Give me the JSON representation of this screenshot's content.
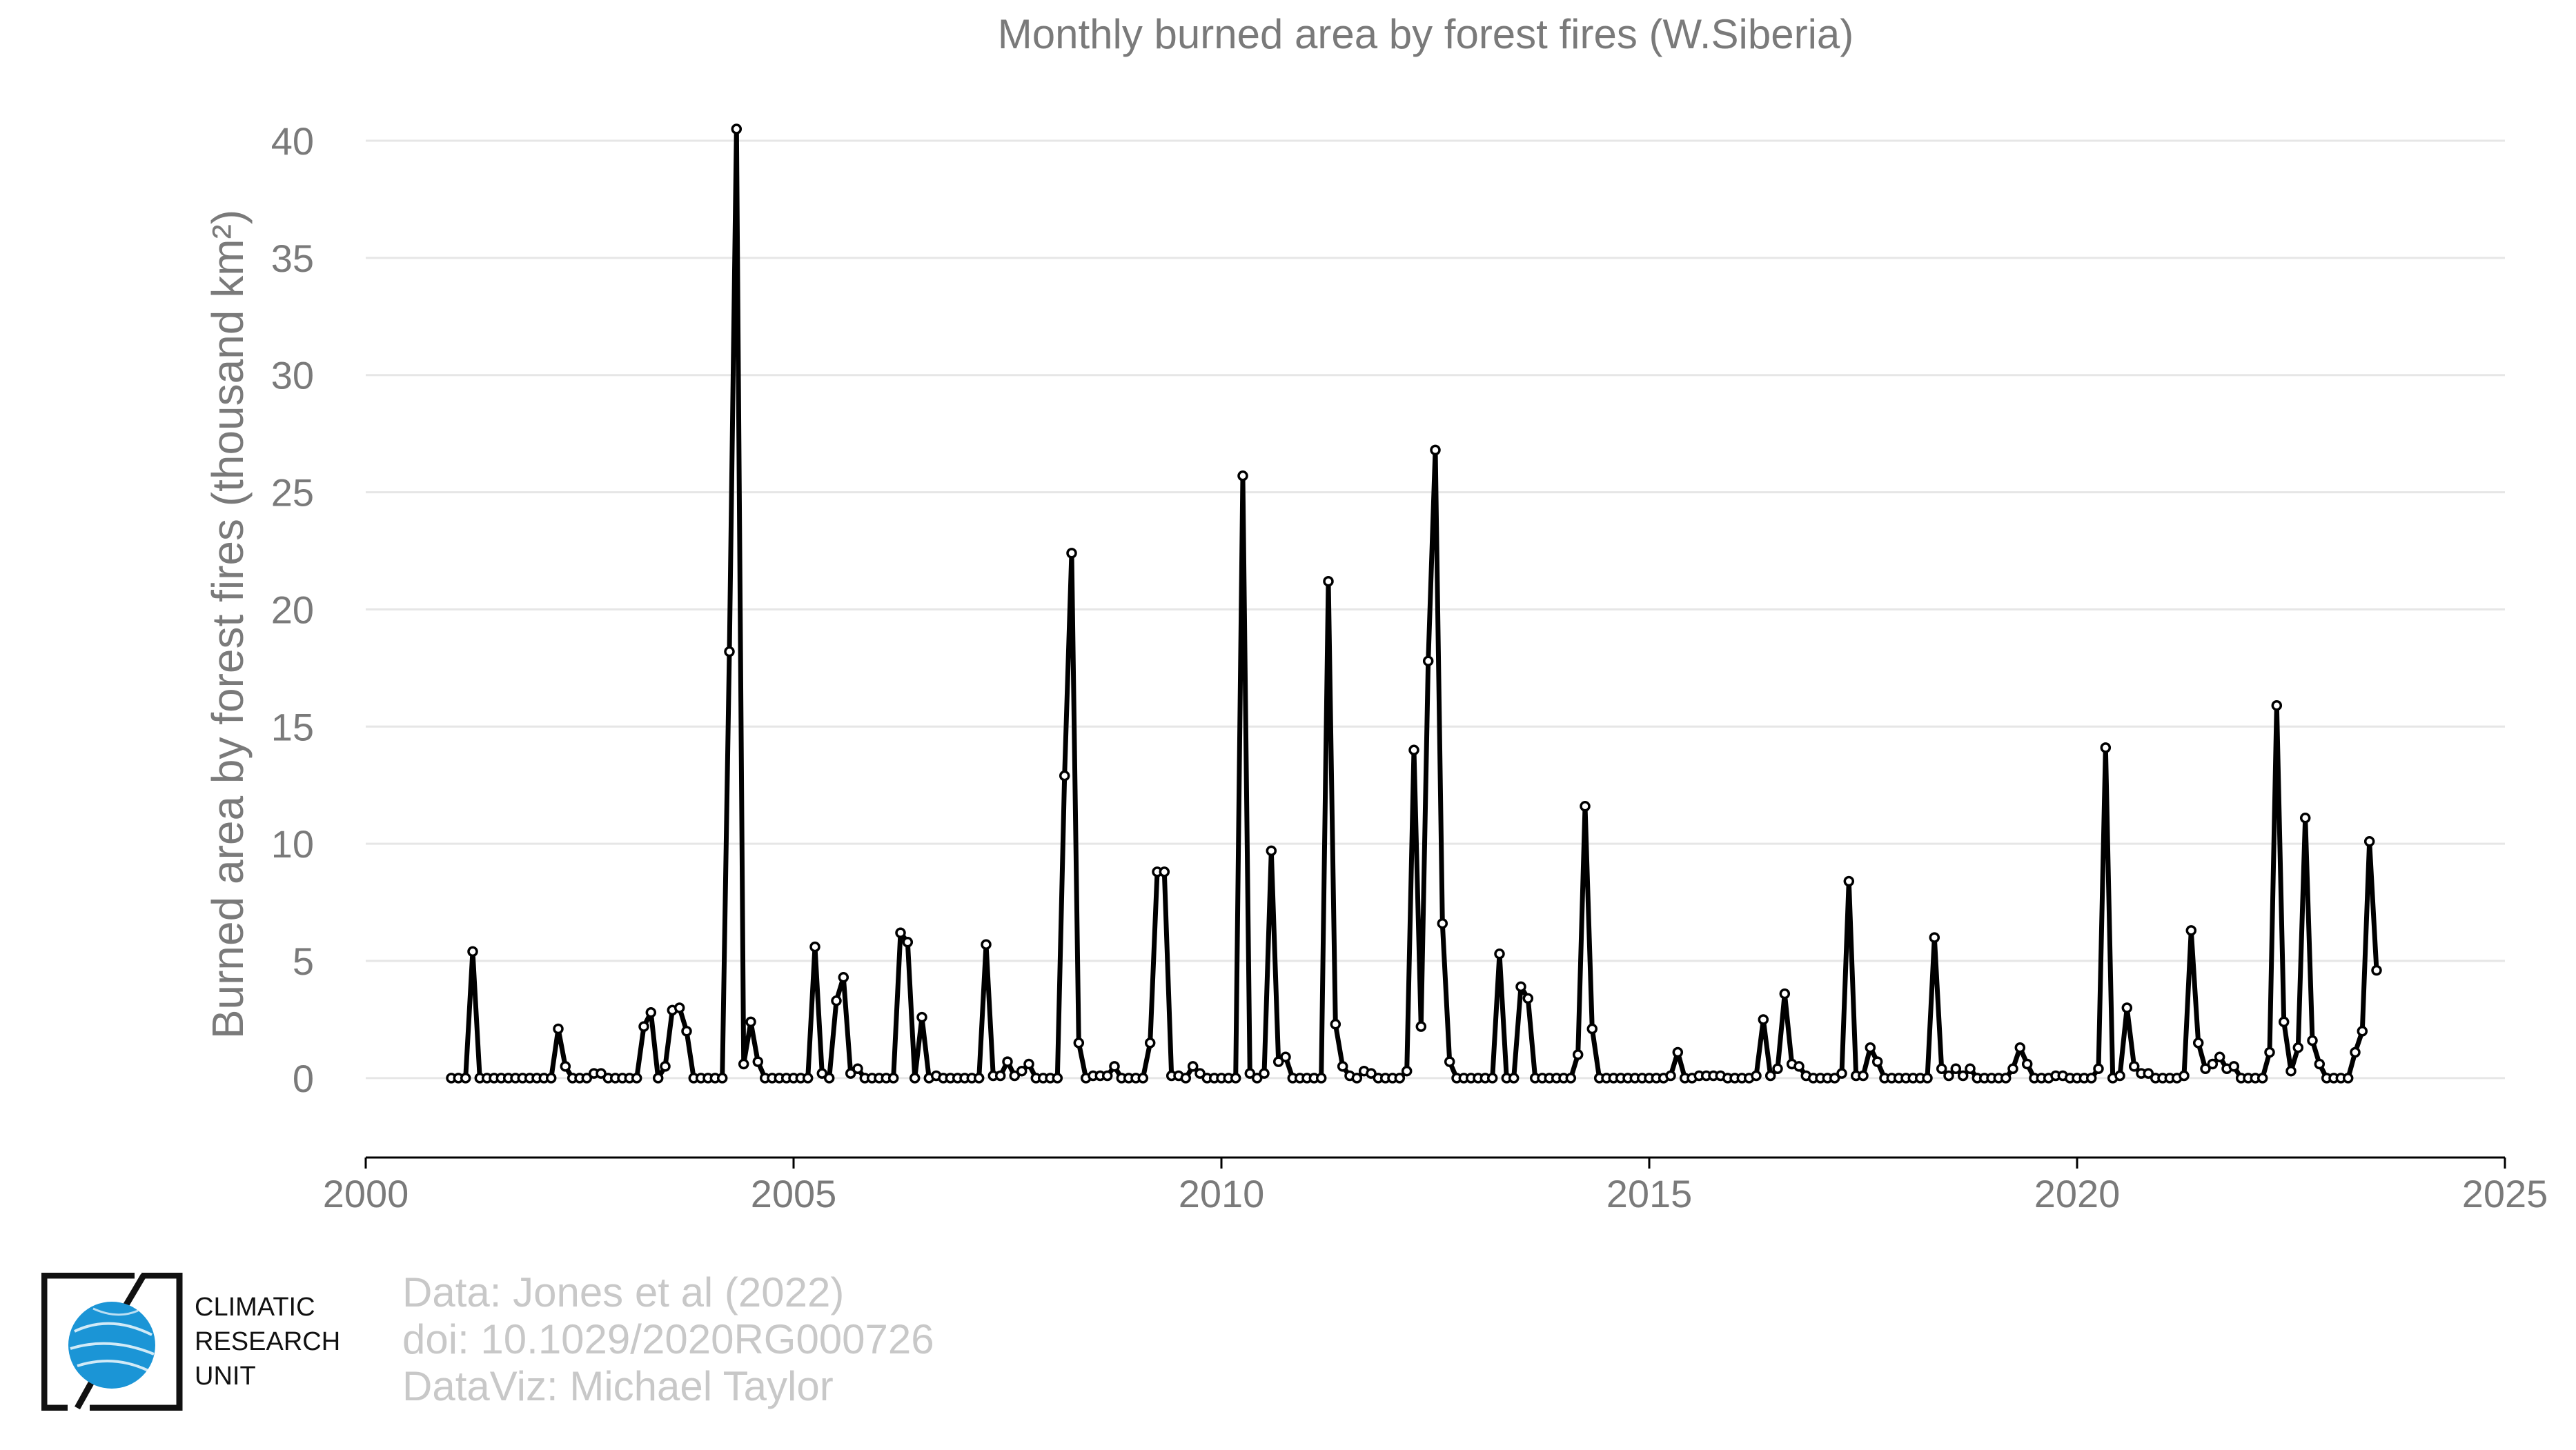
{
  "chart_data": {
    "type": "line",
    "title": "Monthly burned area by forest fires (W.Siberia)",
    "ylabel": "Burned area by forest fires (thousand km²)",
    "xlabel": "",
    "xlim": [
      2000,
      2025
    ],
    "ylim": [
      -3.3,
      41
    ],
    "x_ticks": [
      2000,
      2005,
      2010,
      2015,
      2020,
      2025
    ],
    "y_ticks": [
      0,
      5,
      10,
      15,
      20,
      25,
      30,
      35,
      40
    ],
    "grid": "horizontal",
    "legend": "none",
    "line_color": "#000000",
    "grid_color": "#e6e6e6",
    "series": [
      {
        "start_year": 2001,
        "start_month": 1,
        "values": [
          0,
          0,
          0,
          5.4,
          0,
          0,
          0,
          0,
          0,
          0,
          0,
          0,
          0,
          0,
          0,
          2.1,
          0.5,
          0,
          0,
          0,
          0.2,
          0.2,
          0,
          0,
          0,
          0,
          0,
          2.2,
          2.8,
          0,
          0.5,
          2.9,
          3.0,
          2.0,
          0,
          0,
          0,
          0,
          0,
          18.2,
          40.5,
          0.6,
          2.4,
          0.7,
          0,
          0,
          0,
          0,
          0,
          0,
          0,
          5.6,
          0.2,
          0,
          3.3,
          4.3,
          0.2,
          0.4,
          0,
          0,
          0,
          0,
          0,
          6.2,
          5.8,
          0,
          2.6,
          0,
          0.1,
          0,
          0,
          0,
          0,
          0,
          0,
          5.7,
          0.1,
          0.1,
          0.7,
          0.1,
          0.3,
          0.6,
          0,
          0,
          0,
          0,
          12.9,
          22.4,
          1.5,
          0,
          0.1,
          0.1,
          0.1,
          0.5,
          0,
          0,
          0,
          0,
          1.5,
          8.8,
          8.8,
          0.1,
          0.1,
          0,
          0.5,
          0.2,
          0,
          0,
          0,
          0,
          0,
          25.7,
          0.2,
          0,
          0.2,
          9.7,
          0.7,
          0.9,
          0,
          0,
          0,
          0,
          0,
          21.2,
          2.3,
          0.5,
          0.1,
          0,
          0.3,
          0.2,
          0,
          0,
          0,
          0,
          0.3,
          14.0,
          2.2,
          17.8,
          26.8,
          6.6,
          0.7,
          0,
          0,
          0,
          0,
          0,
          0,
          5.3,
          0,
          0,
          3.9,
          3.4,
          0,
          0,
          0,
          0,
          0,
          0,
          1.0,
          11.6,
          2.1,
          0,
          0,
          0,
          0,
          0,
          0,
          0,
          0,
          0,
          0,
          0.1,
          1.1,
          0,
          0,
          0.1,
          0.1,
          0.1,
          0.1,
          0,
          0,
          0,
          0,
          0.1,
          2.5,
          0.1,
          0.4,
          3.6,
          0.6,
          0.5,
          0.1,
          0,
          0,
          0,
          0,
          0.2,
          8.4,
          0.1,
          0.1,
          1.3,
          0.7,
          0,
          0,
          0,
          0,
          0,
          0,
          0,
          6.0,
          0.4,
          0.1,
          0.4,
          0.1,
          0.4,
          0,
          0,
          0,
          0,
          0,
          0.4,
          1.3,
          0.6,
          0,
          0,
          0,
          0.1,
          0.1,
          0,
          0,
          0,
          0,
          0.4,
          14.1,
          0,
          0.1,
          3.0,
          0.5,
          0.2,
          0.2,
          0,
          0,
          0,
          0,
          0.1,
          6.3,
          1.5,
          0.4,
          0.6,
          0.9,
          0.4,
          0.5,
          0,
          0,
          0,
          0,
          1.1,
          15.9,
          2.4,
          0.3,
          1.3,
          11.1,
          1.6,
          0.6,
          0,
          0,
          0,
          0,
          1.1,
          2.0,
          10.1,
          4.6
        ]
      }
    ]
  },
  "logo": {
    "lines": [
      "CLIMATIC",
      "RESEARCH",
      "UNIT"
    ],
    "globe_color": "#1b95d6"
  },
  "credits": {
    "data": "Data: Jones et al (2022)",
    "doi": "doi: 10.1029/2020RG000726",
    "dataviz": "DataViz: Michael Taylor"
  }
}
